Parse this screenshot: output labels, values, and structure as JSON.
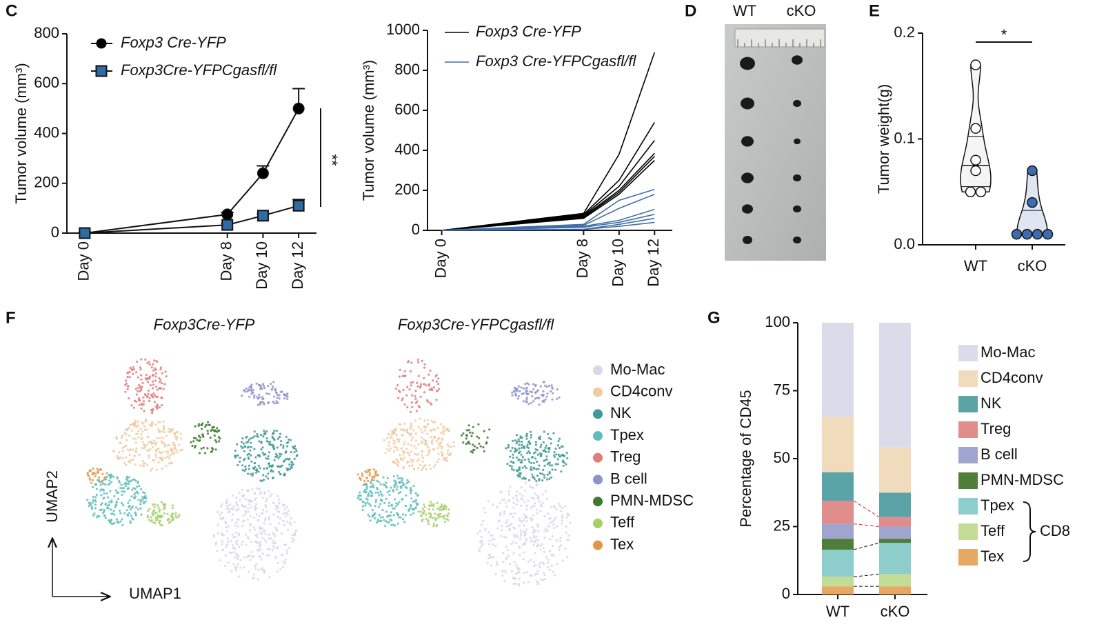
{
  "chart_data": [
    {
      "type": "line",
      "panel": "C",
      "ylabel": "Tumor volume (mm³)",
      "annotation": "**",
      "x": [
        0,
        8,
        10,
        12
      ],
      "xlim": [
        -1,
        13
      ],
      "xticks": [
        {
          "value": 0,
          "label": "Day 0"
        },
        {
          "value": 8,
          "label": "Day 8"
        },
        {
          "value": 10,
          "label": "Day 10"
        },
        {
          "value": 12,
          "label": "Day 12"
        }
      ],
      "ylim": [
        0,
        800
      ],
      "yticks": [
        0,
        200,
        400,
        600,
        800
      ],
      "series": [
        {
          "name": "Foxp3 Cre-YFP",
          "color": "#000000",
          "marker": "circle",
          "values": [
            0,
            75,
            240,
            500
          ],
          "errors": [
            0,
            8,
            30,
            80
          ]
        },
        {
          "name": "Foxp3Cre-YFPCgasfl/fl",
          "color": "#2e6da4",
          "marker": "square",
          "values": [
            0,
            33,
            70,
            110
          ],
          "errors": [
            4,
            6,
            8,
            25
          ]
        }
      ]
    },
    {
      "type": "lines",
      "ylabel": "Tumor volume (mm³)",
      "x": [
        0,
        8,
        10,
        12
      ],
      "xlim": [
        -0.8,
        13
      ],
      "xticks": [
        {
          "value": 0,
          "label": "Day 0"
        },
        {
          "value": 8,
          "label": "Day 8"
        },
        {
          "value": 10,
          "label": "Day 10"
        },
        {
          "value": 12,
          "label": "Day 12"
        }
      ],
      "ylim": [
        0,
        1000
      ],
      "yticks": [
        0,
        200,
        400,
        600,
        800,
        1000
      ],
      "series": [
        {
          "name": "Foxp3 Cre-YFP",
          "color": "#000000",
          "lines": [
            [
              0,
              85,
              380,
              890
            ],
            [
              0,
              80,
              250,
              540
            ],
            [
              0,
              75,
              220,
              450
            ],
            [
              0,
              70,
              200,
              385
            ],
            [
              0,
              65,
              190,
              370
            ],
            [
              0,
              60,
              180,
              350
            ]
          ]
        },
        {
          "name": "Foxp3 Cre-YFPCgasfl/fl",
          "color": "#3f6fa8",
          "lines": [
            [
              0,
              30,
              150,
              205
            ],
            [
              0,
              25,
              110,
              180
            ],
            [
              0,
              20,
              50,
              105
            ],
            [
              0,
              15,
              40,
              80
            ],
            [
              0,
              5,
              30,
              60
            ],
            [
              0,
              5,
              20,
              40
            ]
          ]
        }
      ]
    },
    {
      "type": "image",
      "panel": "D",
      "categories": [
        "WT",
        "cKO"
      ]
    },
    {
      "type": "violin",
      "panel": "E",
      "ylabel": "Tumor weight(g)",
      "annotation": "*",
      "categories": [
        "WT",
        "cKO"
      ],
      "colors": [
        "#ffffff",
        "#3d6cb0"
      ],
      "points": [
        [
          0.17,
          0.11,
          0.08,
          0.07,
          0.05,
          0.05
        ],
        [
          0.07,
          0.04,
          0.01,
          0.01,
          0.01,
          0.01
        ]
      ],
      "ylim": [
        0,
        0.2
      ],
      "yticks": [
        {
          "value": 0,
          "label": "0.0"
        },
        0.1,
        0.2
      ]
    },
    {
      "type": "umap",
      "panel": "F",
      "titles": [
        "Foxp3Cre-YFP",
        "Foxp3Cre-YFPCgasfl/fl"
      ],
      "xlabel": "UMAP1",
      "ylabel": "UMAP2",
      "legend": [
        {
          "name": "Mo-Mac",
          "color": "#d9d6e6"
        },
        {
          "name": "CD4conv",
          "color": "#eecba3"
        },
        {
          "name": "NK",
          "color": "#3f9a98"
        },
        {
          "name": "Tpex",
          "color": "#5fbdbd"
        },
        {
          "name": "Treg",
          "color": "#e07c7c"
        },
        {
          "name": "B cell",
          "color": "#8f93cc"
        },
        {
          "name": "PMN-MDSC",
          "color": "#3e7a2e"
        },
        {
          "name": "Teff",
          "color": "#a6cf6a"
        },
        {
          "name": "Tex",
          "color": "#e0974a"
        }
      ]
    },
    {
      "type": "stacked_bar",
      "panel": "G",
      "ylabel": "Percentage of CD45",
      "bracket_label": "CD8",
      "categories": [
        "WT",
        "cKO"
      ],
      "ylim": [
        0,
        100
      ],
      "yticks": [
        0,
        25,
        50,
        75,
        100
      ],
      "series": [
        {
          "name": "Mo-Mac",
          "color": "#dcdbe9",
          "values": [
            34.5,
            46
          ]
        },
        {
          "name": "CD4conv",
          "color": "#f0dcbc",
          "values": [
            20.5,
            16.5
          ]
        },
        {
          "name": "NK",
          "color": "#5aa3a6",
          "values": [
            10.5,
            9
          ]
        },
        {
          "name": "Treg",
          "color": "#e08d8b",
          "values": [
            8.5,
            3.5
          ]
        },
        {
          "name": "B cell",
          "color": "#a0a5cf",
          "values": [
            5.5,
            4.5
          ]
        },
        {
          "name": "PMN-MDSC",
          "color": "#4f7e3b",
          "values": [
            4,
            1.5
          ]
        },
        {
          "name": "Tpex",
          "color": "#8dcdcc",
          "values": [
            10,
            11.5
          ]
        },
        {
          "name": "Teff",
          "color": "#c3dd96",
          "values": [
            3.5,
            4.5
          ]
        },
        {
          "name": "Tex",
          "color": "#e6a862",
          "values": [
            3,
            3
          ]
        }
      ]
    }
  ]
}
